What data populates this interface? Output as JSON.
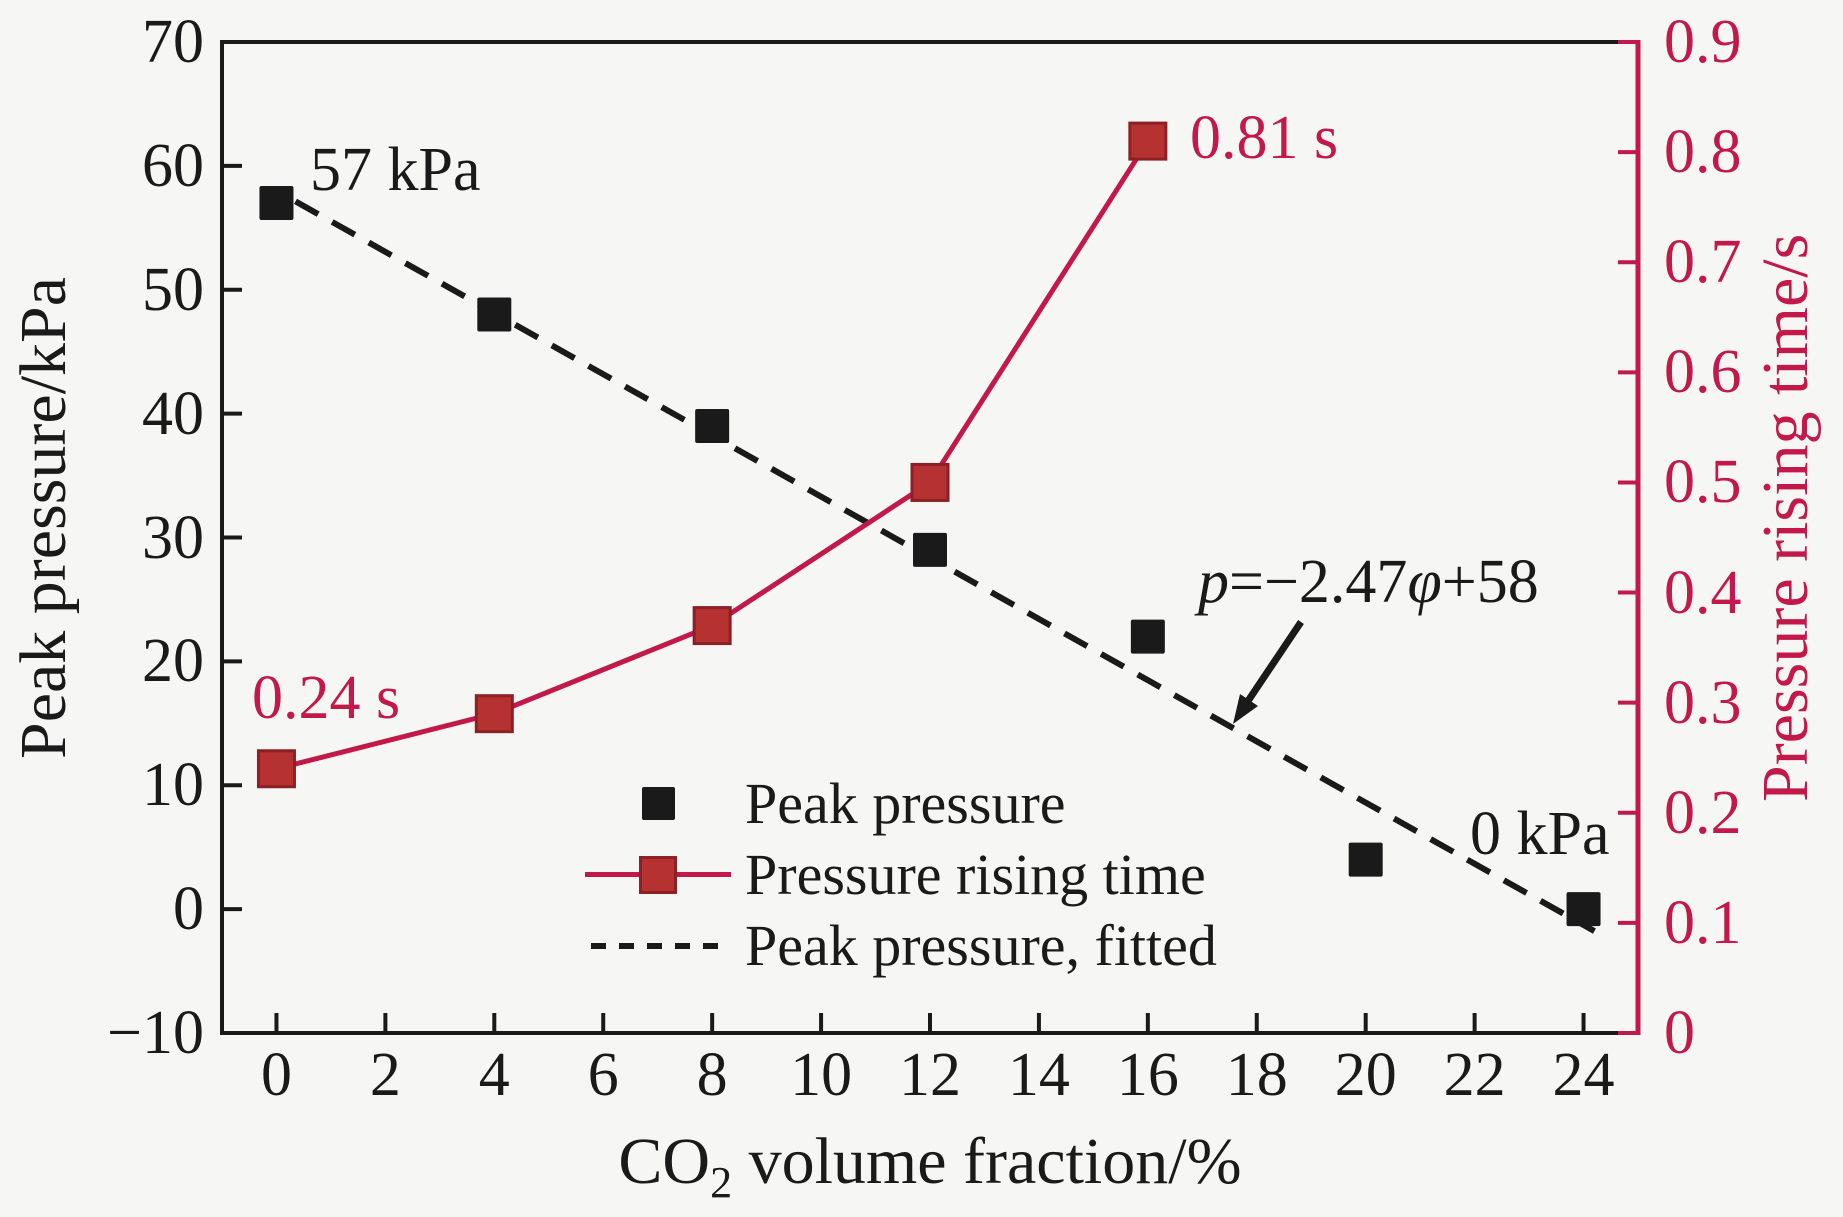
{
  "figure": {
    "background": "#f6f6f4",
    "colors": {
      "black": "#1a1a1a",
      "crimson": "#c2194a",
      "marker_red_fill": "#b53231",
      "marker_red_edge": "#8c2026"
    }
  },
  "axis_titles": {
    "left": "Peak pressure/kPa",
    "right": "Pressure rising time/s",
    "x_pre": "CO",
    "x_sub": "2",
    "x_post": " volume fraction/%"
  },
  "chart_data": {
    "type": "line",
    "title": "",
    "xlabel": "CO2 volume fraction/%",
    "ylabel_left": "Peak pressure/kPa",
    "ylabel_right": "Pressure rising time/s",
    "xlim": [
      -1,
      25
    ],
    "ylim_left": [
      -10,
      70
    ],
    "ylim_right": [
      0,
      0.9
    ],
    "grid": false,
    "legend_position": "inside lower-center-left",
    "x_ticks": [
      {
        "v": 0,
        "label": "0"
      },
      {
        "v": 2,
        "label": "2"
      },
      {
        "v": 4,
        "label": "4"
      },
      {
        "v": 6,
        "label": "6"
      },
      {
        "v": 8,
        "label": "8"
      },
      {
        "v": 10,
        "label": "10"
      },
      {
        "v": 12,
        "label": "12"
      },
      {
        "v": 14,
        "label": "14"
      },
      {
        "v": 16,
        "label": "16"
      },
      {
        "v": 18,
        "label": "18"
      },
      {
        "v": 20,
        "label": "20"
      },
      {
        "v": 22,
        "label": "22"
      },
      {
        "v": 24,
        "label": "24"
      }
    ],
    "y_ticks_left": [
      {
        "v": 70,
        "label": "70"
      },
      {
        "v": 60,
        "label": "60"
      },
      {
        "v": 50,
        "label": "50"
      },
      {
        "v": 40,
        "label": "40"
      },
      {
        "v": 30,
        "label": "30"
      },
      {
        "v": 20,
        "label": "20"
      },
      {
        "v": 10,
        "label": "10"
      },
      {
        "v": 0,
        "label": "0"
      },
      {
        "v": -10,
        "label": "−10"
      }
    ],
    "y_ticks_right": [
      {
        "v": 0.9,
        "label": "0.9"
      },
      {
        "v": 0.8,
        "label": "0.8"
      },
      {
        "v": 0.7,
        "label": "0.7"
      },
      {
        "v": 0.6,
        "label": "0.6"
      },
      {
        "v": 0.5,
        "label": "0.5"
      },
      {
        "v": 0.4,
        "label": "0.4"
      },
      {
        "v": 0.3,
        "label": "0.3"
      },
      {
        "v": 0.2,
        "label": "0.2"
      },
      {
        "v": 0.1,
        "label": "0.1"
      },
      {
        "v": 0,
        "label": "0"
      }
    ],
    "series": [
      {
        "name": "Peak pressure",
        "kind": "scatter",
        "axis": "left",
        "color": "#1a1a1a",
        "x": [
          0,
          4,
          8,
          12,
          16,
          20,
          24
        ],
        "y": [
          57,
          48,
          39,
          29,
          22,
          4,
          0
        ]
      },
      {
        "name": "Pressure rising time",
        "kind": "line-marker",
        "axis": "right",
        "color": "#c2194a",
        "marker_fill": "#b53231",
        "marker_edge": "#8c2026",
        "x": [
          0,
          4,
          8,
          12,
          16
        ],
        "y": [
          0.24,
          0.29,
          0.37,
          0.5,
          0.81
        ]
      },
      {
        "name": "Peak pressure, fitted",
        "kind": "fitted-dashed",
        "axis": "left",
        "color": "#1a1a1a",
        "slope": -2.47,
        "intercept": 58,
        "x_range": [
          0.35,
          24.2
        ]
      }
    ]
  },
  "annotations": {
    "peak_start": "57 kPa",
    "peak_end": "0 kPa",
    "time_start": "0.24 s",
    "time_end": "0.81 s",
    "equation": {
      "p": "p",
      "mid": "=−2.47",
      "phi": "φ",
      "tail": "+58"
    }
  }
}
